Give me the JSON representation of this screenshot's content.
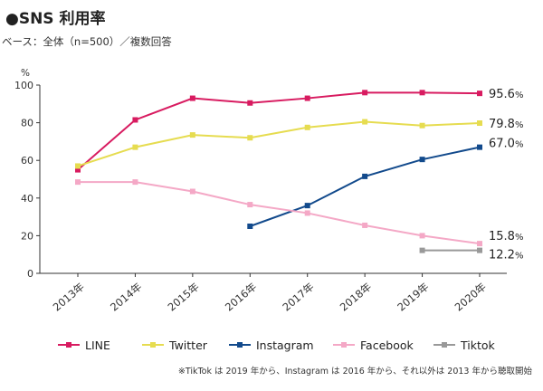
{
  "title": "●SNS 利用率",
  "subtitle": "ベース：全体（n=500）／複数回答",
  "footnote": "※TikTok は 2019 年から、Instagram は 2016 年から、それ以外は 2013 年から聴取開始",
  "chart_data": {
    "type": "line",
    "unit_label": "%",
    "x": [
      "2013年",
      "2014年",
      "2015年",
      "2016年",
      "2017年",
      "2018年",
      "2019年",
      "2020年"
    ],
    "ylim": [
      0,
      100
    ],
    "yticks": [
      "0",
      "20",
      "40",
      "60",
      "80",
      "100"
    ],
    "grid": false,
    "legend_position": "bottom",
    "series": [
      {
        "name": "LINE",
        "color": "#d81b60",
        "values": [
          55,
          81.5,
          93,
          90.5,
          93,
          96,
          96,
          95.6
        ],
        "end_label": "95.6",
        "end_unit": "%"
      },
      {
        "name": "Twitter",
        "color": "#e6dc50",
        "values": [
          57,
          67,
          73.5,
          72,
          77.5,
          80.5,
          78.5,
          79.8
        ],
        "end_label": "79.8",
        "end_unit": "%"
      },
      {
        "name": "Instagram",
        "color": "#124a8c",
        "values": [
          null,
          null,
          null,
          25,
          36,
          51.5,
          60.5,
          67.0
        ],
        "end_label": "67.0",
        "end_unit": "%"
      },
      {
        "name": "Facebook",
        "color": "#f4a8c6",
        "values": [
          48.5,
          48.5,
          43.5,
          36.5,
          32,
          25.5,
          20,
          15.8
        ],
        "end_label": "15.8",
        "end_unit": "%"
      },
      {
        "name": "Tiktok",
        "color": "#999999",
        "values": [
          null,
          null,
          null,
          null,
          null,
          null,
          12.2,
          12.2
        ],
        "end_label": "12.2",
        "end_unit": "%"
      }
    ]
  }
}
